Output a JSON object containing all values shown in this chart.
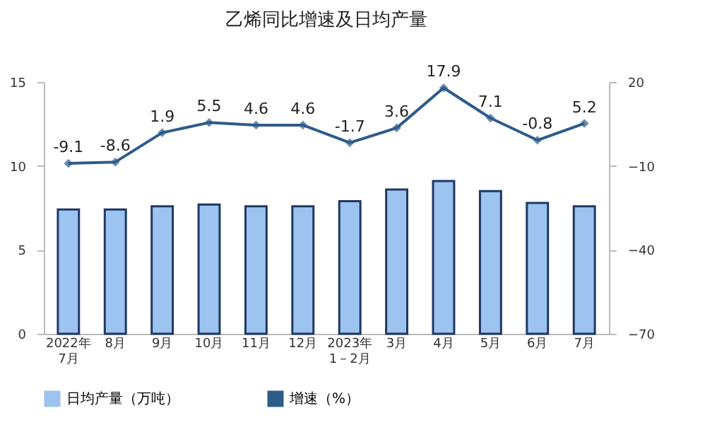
{
  "chart_data": {
    "type": "bar",
    "title": "乙烯同比增速及日均产量",
    "categories": [
      "2022年\n7月",
      "8月",
      "9月",
      "10月",
      "11月",
      "12月",
      "2023年\n1－2月",
      "3月",
      "4月",
      "5月",
      "6月",
      "7月"
    ],
    "series": [
      {
        "name": "日均产量（万吨）",
        "color": "#9dc3f0",
        "values": [
          7.4,
          7.4,
          7.6,
          7.7,
          7.6,
          7.6,
          7.9,
          8.6,
          9.1,
          8.5,
          7.8,
          7.6
        ]
      },
      {
        "name": "增速（%）",
        "type": "line",
        "axis": "y2",
        "color": "#2e5c8a",
        "values": [
          -9.1,
          -8.6,
          1.9,
          5.5,
          4.6,
          4.6,
          -1.7,
          3.6,
          17.9,
          7.1,
          -0.8,
          5.2
        ],
        "value_labels": [
          "-9.1",
          "-8.6",
          "1.9",
          "5.5",
          "4.6",
          "4.6",
          "-1.7",
          "3.6",
          "17.9",
          "7.1",
          "-0.8",
          "5.2"
        ]
      }
    ],
    "ylim": [
      0,
      15
    ],
    "yticks": [
      0,
      5,
      10,
      15
    ],
    "y2lim": [
      -70,
      20
    ],
    "y2ticks": [
      -70,
      -40,
      -10,
      20
    ],
    "marker": "diamond",
    "legend": "bottom",
    "grid": false
  }
}
